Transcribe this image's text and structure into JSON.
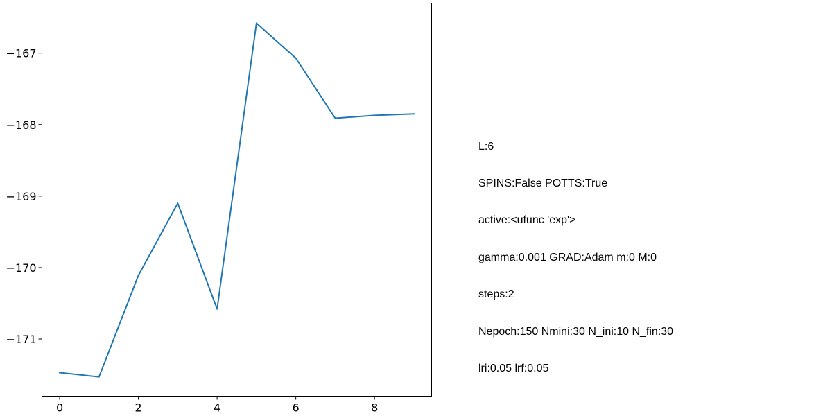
{
  "chart_data": {
    "type": "line",
    "title": "",
    "xlabel": "",
    "ylabel": "",
    "x": [
      0,
      1,
      2,
      3,
      4,
      5,
      6,
      7,
      8,
      9
    ],
    "series": [
      {
        "values": [
          -171.47,
          -171.53,
          -170.11,
          -169.1,
          -170.58,
          -166.58,
          -167.07,
          -167.91,
          -167.87,
          -167.85
        ],
        "color": "#1f77b4"
      }
    ],
    "xlim": [
      -0.45,
      9.45
    ],
    "ylim": [
      -171.8,
      -166.3
    ],
    "xticks": [
      0,
      2,
      4,
      6,
      8
    ],
    "yticks": [
      -171,
      -170,
      -169,
      -168,
      -167
    ],
    "xtick_labels": [
      "0",
      "2",
      "4",
      "6",
      "8"
    ],
    "ytick_labels": [
      "−171",
      "−170",
      "−169",
      "−168",
      "−167"
    ],
    "grid": false,
    "legend": false
  },
  "info": {
    "lines": [
      "L:6",
      "SPINS:False POTTS:True",
      "active:<ufunc 'exp'>",
      "gamma:0.001 GRAD:Adam m:0 M:0",
      "steps:2",
      "Nepoch:150 Nmini:30 N_ini:10 N_fin:30",
      "lri:0.05 lrf:0.05"
    ]
  }
}
